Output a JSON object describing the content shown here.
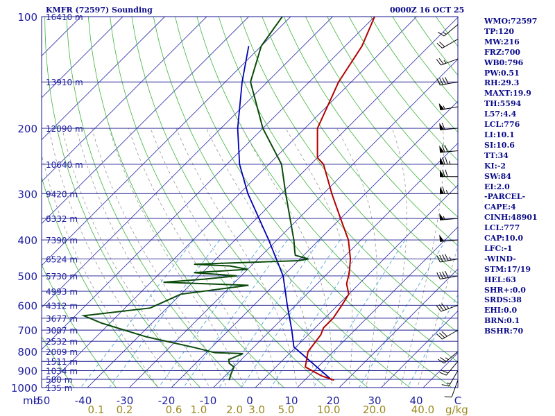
{
  "header": {
    "station": "KMFR (72597) Sounding",
    "time": "0000Z 16 OCT 25"
  },
  "indices": [
    "WMO:72597",
    "TP:120",
    "MW:216",
    "FRZ:700",
    "WB0:796",
    "PW:0.51",
    "RH:29.3",
    "MAXT:19.9",
    "TH:5594",
    "L57:4.4",
    "LCL:776",
    "LI:10.1",
    "SI:10.6",
    "TT:34",
    "KI:-2",
    "SW:84",
    "EI:2.0",
    "-PARCEL-",
    "CAPE:4",
    "CINH:48901",
    "LCL:777",
    "CAP:10.0",
    "LFC:-1",
    "-WIND-",
    "STM:17/19",
    "HEL:63",
    "SHR+:0.0",
    "SRDS:38",
    "EHI:0.0",
    "BRN:0.1",
    "BSHR:70"
  ],
  "colors": {
    "isobar": "#14148c",
    "isotherm": "#3a3ab4",
    "dry_adiabat": "#3cb43c",
    "mixing_ratio": "#4aa6d8",
    "moist_adiabat": "#969696",
    "temperature": "#b40000",
    "dewpoint": "#0a4a0a",
    "parcel": "#0000b4",
    "wind_barb": "#000000",
    "axis_label": "#1e1ea0",
    "mixing_label": "#9b8a1e"
  },
  "chart_data": {
    "type": "skew-t log-p sounding",
    "x_unit": "°C",
    "y_unit": "mb",
    "x_axis_label": "mb",
    "mixing_ratio_unit": "g/kg",
    "temperature_ticks": [
      "-50",
      "-40",
      "-30",
      "-20",
      "-10",
      "0",
      "10",
      "20",
      "30",
      "40",
      "C"
    ],
    "pressure_ticks": [
      "100",
      "200",
      "300",
      "400",
      "500",
      "600",
      "700",
      "800",
      "900",
      "1000"
    ],
    "mixing_ratio_ticks": [
      "0.1",
      "0.2",
      "0.6",
      "1.0",
      "2.0",
      "3.0",
      "5.0",
      "10.0",
      "20.0",
      "40.0"
    ],
    "height_labels": [
      {
        "p": 100,
        "label": "16410 m"
      },
      {
        "p": 150,
        "label": "13910 m"
      },
      {
        "p": 200,
        "label": "12090 m"
      },
      {
        "p": 250,
        "label": "10640 m"
      },
      {
        "p": 300,
        "label": "9420 m"
      },
      {
        "p": 350,
        "label": "8332 m"
      },
      {
        "p": 400,
        "label": "7390 m"
      },
      {
        "p": 450,
        "label": "6524 m"
      },
      {
        "p": 500,
        "label": "5730 m"
      },
      {
        "p": 550,
        "label": "4993 m"
      },
      {
        "p": 600,
        "label": "4312 m"
      },
      {
        "p": 650,
        "label": "3677 m"
      },
      {
        "p": 700,
        "label": "3087 m"
      },
      {
        "p": 750,
        "label": "2532 m"
      },
      {
        "p": 800,
        "label": "2009 m"
      },
      {
        "p": 850,
        "label": "1511 m"
      },
      {
        "p": 900,
        "label": "1034 m"
      },
      {
        "p": 950,
        "label": "580 m"
      },
      {
        "p": 1000,
        "label": "135 m"
      }
    ],
    "temperature_profile": [
      {
        "p": 955,
        "t": 17
      },
      {
        "p": 930,
        "t": 13
      },
      {
        "p": 880,
        "t": 7
      },
      {
        "p": 800,
        "t": 4
      },
      {
        "p": 720,
        "t": 3
      },
      {
        "p": 690,
        "t": 2
      },
      {
        "p": 650,
        "t": 2
      },
      {
        "p": 600,
        "t": 1
      },
      {
        "p": 560,
        "t": 0
      },
      {
        "p": 525,
        "t": -3
      },
      {
        "p": 490,
        "t": -5
      },
      {
        "p": 450,
        "t": -8
      },
      {
        "p": 400,
        "t": -13
      },
      {
        "p": 350,
        "t": -20
      },
      {
        "p": 300,
        "t": -28
      },
      {
        "p": 250,
        "t": -37
      },
      {
        "p": 240,
        "t": -40
      },
      {
        "p": 200,
        "t": -47
      },
      {
        "p": 150,
        "t": -53
      },
      {
        "p": 120,
        "t": -56
      },
      {
        "p": 100,
        "t": -60
      }
    ],
    "dewpoint_profile": [
      {
        "p": 955,
        "t": -8
      },
      {
        "p": 920,
        "t": -9
      },
      {
        "p": 880,
        "t": -10
      },
      {
        "p": 860,
        "t": -12
      },
      {
        "p": 840,
        "t": -13
      },
      {
        "p": 810,
        "t": -11
      },
      {
        "p": 805,
        "t": -18
      },
      {
        "p": 780,
        "t": -24
      },
      {
        "p": 730,
        "t": -38
      },
      {
        "p": 670,
        "t": -52
      },
      {
        "p": 640,
        "t": -58
      },
      {
        "p": 610,
        "t": -44
      },
      {
        "p": 560,
        "t": -40
      },
      {
        "p": 530,
        "t": -26
      },
      {
        "p": 520,
        "t": -47
      },
      {
        "p": 510,
        "t": -38
      },
      {
        "p": 500,
        "t": -31
      },
      {
        "p": 490,
        "t": -42
      },
      {
        "p": 480,
        "t": -30
      },
      {
        "p": 470,
        "t": -35
      },
      {
        "p": 465,
        "t": -44
      },
      {
        "p": 455,
        "t": -20
      },
      {
        "p": 450,
        "t": -18
      },
      {
        "p": 440,
        "t": -22
      },
      {
        "p": 430,
        "t": -23
      },
      {
        "p": 400,
        "t": -26
      },
      {
        "p": 300,
        "t": -39
      },
      {
        "p": 250,
        "t": -47
      },
      {
        "p": 200,
        "t": -60
      },
      {
        "p": 150,
        "t": -74
      },
      {
        "p": 120,
        "t": -80
      },
      {
        "p": 100,
        "t": -82
      }
    ],
    "parcel_profile": [
      {
        "p": 955,
        "t": 16.5
      },
      {
        "p": 777,
        "t": -0.5
      },
      {
        "p": 700,
        "t": -5
      },
      {
        "p": 600,
        "t": -12
      },
      {
        "p": 500,
        "t": -20
      },
      {
        "p": 400,
        "t": -32
      },
      {
        "p": 300,
        "t": -48
      },
      {
        "p": 250,
        "t": -57
      },
      {
        "p": 200,
        "t": -66
      },
      {
        "p": 150,
        "t": -76
      },
      {
        "p": 120,
        "t": -83
      }
    ],
    "wind_barbs": [
      {
        "p": 955,
        "dir": 200,
        "spd": 10
      },
      {
        "p": 900,
        "dir": 210,
        "spd": 15
      },
      {
        "p": 850,
        "dir": 220,
        "spd": 20
      },
      {
        "p": 800,
        "dir": 230,
        "spd": 25
      },
      {
        "p": 700,
        "dir": 240,
        "spd": 30
      },
      {
        "p": 600,
        "dir": 250,
        "spd": 35
      },
      {
        "p": 500,
        "dir": 260,
        "spd": 40
      },
      {
        "p": 450,
        "dir": 260,
        "spd": 45
      },
      {
        "p": 400,
        "dir": 265,
        "spd": 50
      },
      {
        "p": 350,
        "dir": 265,
        "spd": 55
      },
      {
        "p": 300,
        "dir": 270,
        "spd": 65
      },
      {
        "p": 270,
        "dir": 270,
        "spd": 70
      },
      {
        "p": 250,
        "dir": 270,
        "spd": 75
      },
      {
        "p": 230,
        "dir": 265,
        "spd": 70
      },
      {
        "p": 200,
        "dir": 265,
        "spd": 60
      },
      {
        "p": 175,
        "dir": 260,
        "spd": 55
      },
      {
        "p": 150,
        "dir": 260,
        "spd": 40
      },
      {
        "p": 130,
        "dir": 250,
        "spd": 25
      },
      {
        "p": 115,
        "dir": 240,
        "spd": 20
      },
      {
        "p": 105,
        "dir": 230,
        "spd": 15
      }
    ]
  }
}
